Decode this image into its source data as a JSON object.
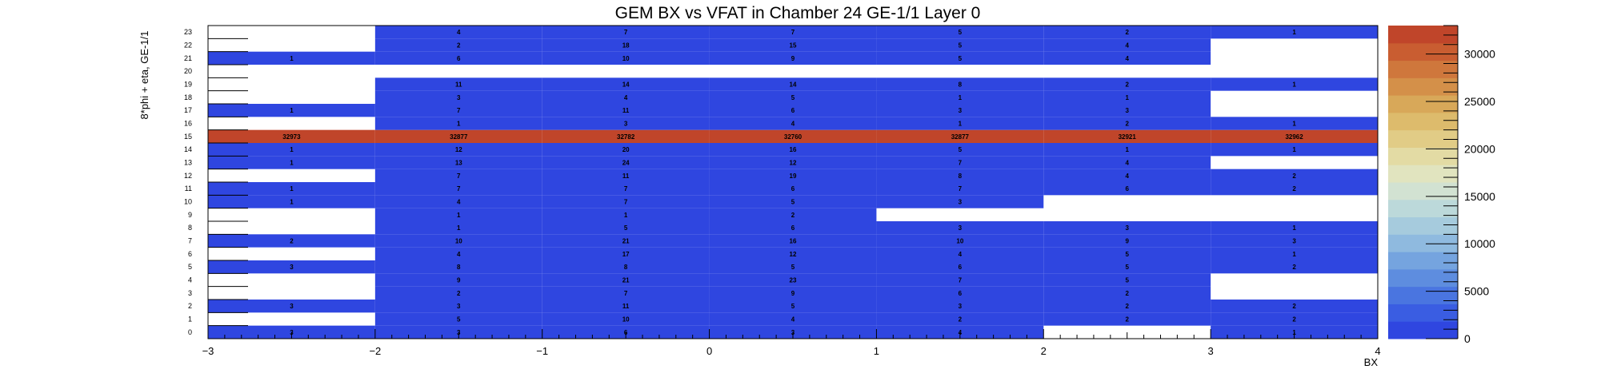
{
  "chart_data": {
    "type": "heatmap",
    "title": "GEM BX vs VFAT in Chamber 24 GE-1/1 Layer 0",
    "xlabel": "BX",
    "ylabel": "8*phi + eta, GE-1/1",
    "xlim": [
      -3,
      4
    ],
    "ylim": [
      0,
      24
    ],
    "x_ticks": [
      "−3",
      "−2",
      "−1",
      "0",
      "1",
      "2",
      "3",
      "4"
    ],
    "bins_x": [
      -3,
      -2,
      -1,
      0,
      1,
      2,
      3
    ],
    "y_ticks": [
      "0",
      "1",
      "2",
      "3",
      "4",
      "5",
      "6",
      "7",
      "8",
      "9",
      "10",
      "11",
      "12",
      "13",
      "14",
      "15",
      "16",
      "17",
      "18",
      "19",
      "20",
      "21",
      "22",
      "23"
    ],
    "z_range": [
      0,
      33000
    ],
    "z_ticks": [
      "0",
      "5000",
      "10000",
      "15000",
      "20000",
      "25000",
      "30000"
    ],
    "z_tick_values": [
      0,
      5000,
      10000,
      15000,
      20000,
      25000,
      30000
    ],
    "palette": [
      "#2f46e0",
      "#3a5de2",
      "#4a75e0",
      "#5e8ddf",
      "#75a4df",
      "#8fbadf",
      "#a6cbdd",
      "#bcd9da",
      "#d2e2d2",
      "#e1e4bf",
      "#e3dba4",
      "#e1cc86",
      "#ddbb6c",
      "#d8a859",
      "#d49049",
      "#cf773c",
      "#c95d31",
      "#c0452a"
    ],
    "cells": [
      [
        3,
        3,
        6,
        3,
        4,
        null,
        1
      ],
      [
        null,
        5,
        10,
        4,
        2,
        2,
        2
      ],
      [
        3,
        3,
        11,
        5,
        3,
        2,
        2
      ],
      [
        null,
        2,
        7,
        9,
        6,
        2,
        null
      ],
      [
        null,
        9,
        21,
        23,
        7,
        5,
        null
      ],
      [
        3,
        8,
        8,
        5,
        6,
        5,
        2
      ],
      [
        null,
        4,
        17,
        12,
        4,
        5,
        1
      ],
      [
        2,
        10,
        21,
        16,
        10,
        9,
        3
      ],
      [
        null,
        1,
        5,
        6,
        3,
        3,
        1
      ],
      [
        null,
        1,
        1,
        2,
        null,
        null,
        null
      ],
      [
        1,
        4,
        7,
        5,
        3,
        null,
        null
      ],
      [
        1,
        7,
        7,
        6,
        7,
        6,
        2
      ],
      [
        null,
        7,
        11,
        19,
        8,
        4,
        2
      ],
      [
        1,
        13,
        24,
        12,
        7,
        4,
        null
      ],
      [
        1,
        12,
        20,
        16,
        5,
        1,
        1
      ],
      [
        32973,
        32877,
        32782,
        32760,
        32877,
        32921,
        32962
      ],
      [
        null,
        1,
        3,
        4,
        1,
        2,
        1
      ],
      [
        1,
        7,
        11,
        6,
        3,
        3,
        null
      ],
      [
        null,
        3,
        4,
        5,
        1,
        1,
        null
      ],
      [
        null,
        11,
        14,
        14,
        8,
        2,
        1
      ],
      [
        null,
        null,
        null,
        null,
        null,
        null,
        null
      ],
      [
        1,
        6,
        10,
        9,
        5,
        4,
        null
      ],
      [
        null,
        2,
        18,
        15,
        5,
        4,
        null
      ],
      [
        null,
        4,
        7,
        7,
        5,
        2,
        1
      ]
    ]
  }
}
